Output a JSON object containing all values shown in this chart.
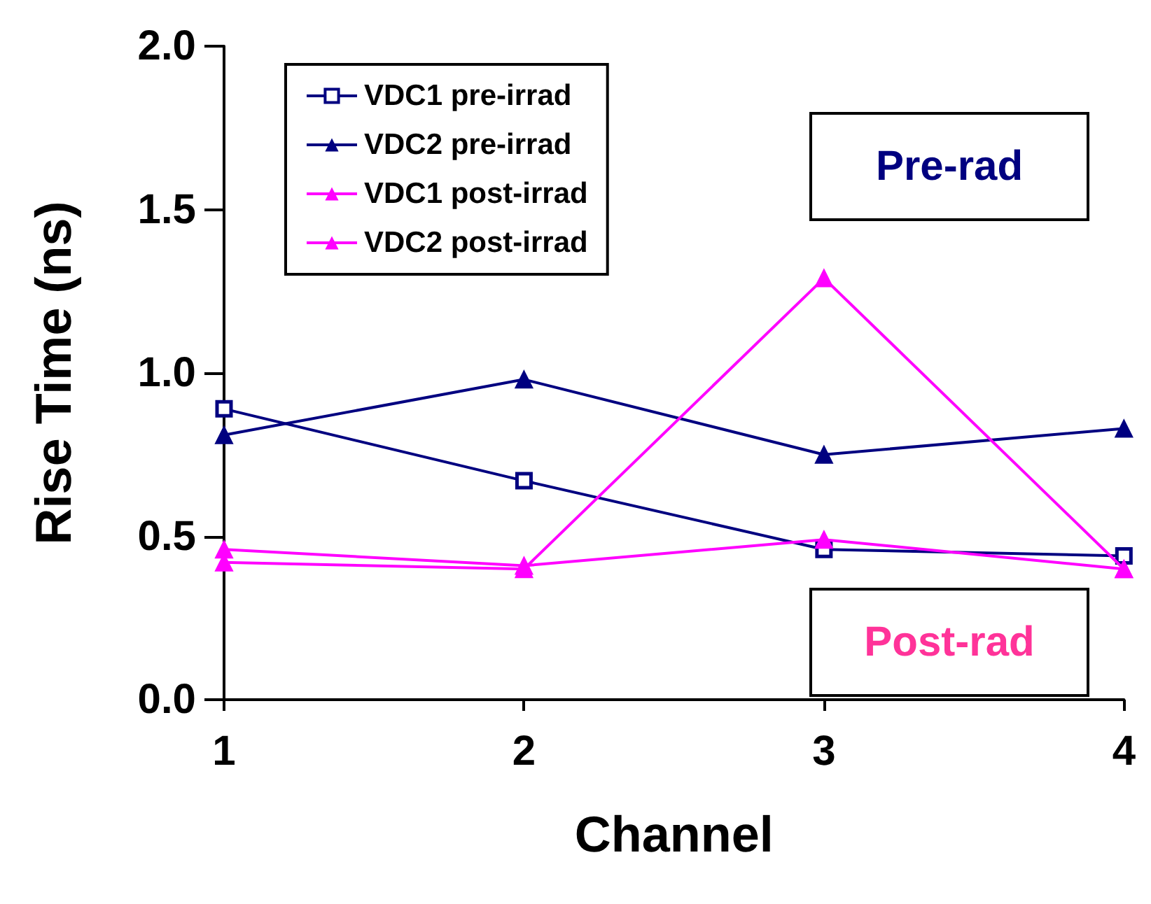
{
  "chart_data": {
    "type": "line",
    "xlabel": "Channel",
    "ylabel": "Rise Time (ns)",
    "x": [
      1,
      2,
      3,
      4
    ],
    "series": [
      {
        "name": "VDC1 pre-irrad",
        "color": "#000080",
        "marker": "square",
        "values": [
          0.89,
          0.67,
          0.46,
          0.44
        ]
      },
      {
        "name": "VDC2 pre-irrad",
        "color": "#000080",
        "marker": "triangle",
        "values": [
          0.81,
          0.98,
          0.75,
          0.83
        ]
      },
      {
        "name": "VDC1 post-irrad",
        "color": "#ff00ff",
        "marker": "triangle",
        "values": [
          0.46,
          0.41,
          0.49,
          0.4
        ]
      },
      {
        "name": "VDC2 post-irrad",
        "color": "#ff00ff",
        "marker": "triangle",
        "values": [
          0.42,
          0.4,
          1.29,
          0.4
        ]
      }
    ],
    "xlim": [
      1,
      4
    ],
    "xticks": [
      1,
      2,
      3,
      4
    ],
    "ylim": [
      0,
      2
    ],
    "yticks": [
      {
        "value": 0,
        "label": "0.0"
      },
      {
        "value": 0.5,
        "label": "0.5"
      },
      {
        "value": 1,
        "label": "1.0"
      },
      {
        "value": 1.5,
        "label": "1.5"
      },
      {
        "value": 2,
        "label": "2.0"
      }
    ],
    "annotations": [
      "Pre-rad",
      "Post-rad"
    ],
    "legend": "top left",
    "grid": false,
    "line_style": "solid"
  }
}
